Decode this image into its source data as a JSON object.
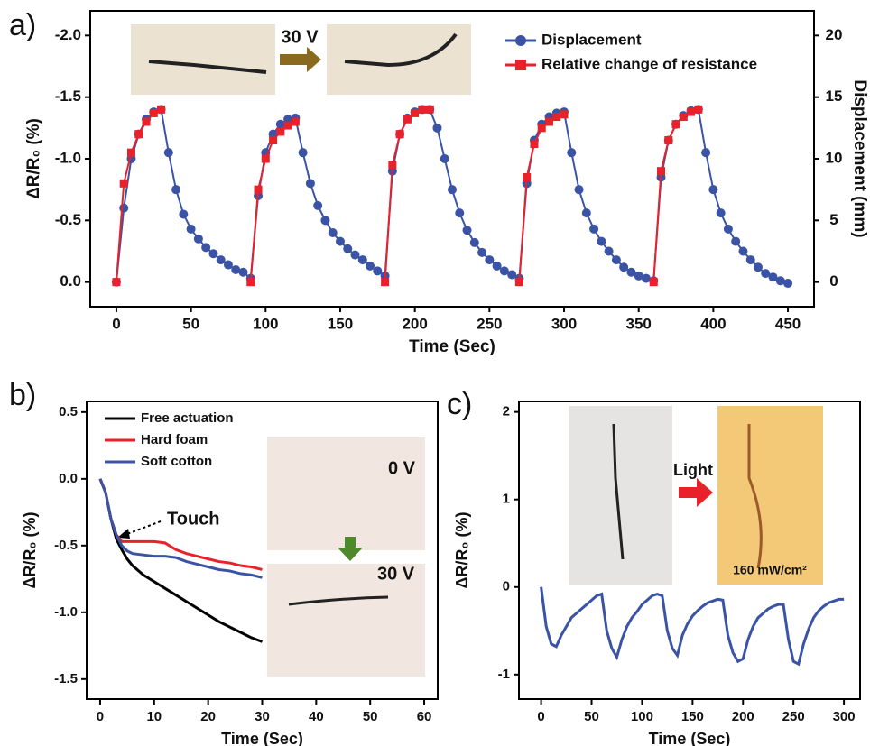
{
  "chart_data": [
    {
      "type": "line",
      "panel_label": "a)",
      "x_label": "Time (Sec)",
      "y_label": "ΔR/R₀ (%)",
      "y2_label": "Displacement (mm)",
      "annotations": [
        "30 V"
      ],
      "xlim": [
        -17.5,
        467.5
      ],
      "xticks": [
        0,
        50,
        100,
        150,
        200,
        250,
        300,
        350,
        400,
        450
      ],
      "ylim": [
        0.2,
        -2.2
      ],
      "yticks": [
        {
          "value": -2,
          "label": "-2.0"
        },
        -1.5,
        {
          "value": -1,
          "label": "-1.0"
        },
        -0.5,
        {
          "value": 0,
          "label": "0.0"
        }
      ],
      "y2lim": [
        -2,
        22
      ],
      "y2ticks": [
        0,
        5,
        10,
        15,
        20
      ],
      "x": [
        0,
        5,
        10,
        15,
        20,
        25,
        30,
        35,
        40,
        45,
        50,
        55,
        60,
        65,
        70,
        75,
        80,
        85,
        90,
        95,
        100,
        105,
        110,
        115,
        120,
        125,
        130,
        135,
        140,
        145,
        150,
        155,
        160,
        165,
        170,
        175,
        180,
        185,
        190,
        195,
        200,
        205,
        210,
        215,
        220,
        225,
        230,
        235,
        240,
        245,
        250,
        255,
        260,
        265,
        270,
        275,
        280,
        285,
        290,
        295,
        300,
        305,
        310,
        315,
        320,
        325,
        330,
        335,
        340,
        345,
        350,
        355,
        360,
        365,
        370,
        375,
        380,
        385,
        390,
        395,
        400,
        405,
        410,
        415,
        420,
        425,
        430,
        435,
        440,
        445,
        450
      ],
      "series": [
        {
          "name": "Displacement",
          "color": "#3a53a4",
          "marker": "circle",
          "axis": "y2",
          "values": [
            0,
            6,
            10,
            12,
            13.2,
            13.8,
            14,
            10.5,
            7.5,
            5.5,
            4.3,
            3.5,
            2.8,
            2.3,
            1.8,
            1.4,
            1.0,
            0.8,
            0.3,
            7,
            10.5,
            12,
            12.8,
            13.2,
            13.3,
            10.5,
            8,
            6.2,
            5,
            4,
            3.3,
            2.7,
            2.2,
            1.8,
            1.3,
            0.9,
            0.5,
            9,
            12,
            13.3,
            13.8,
            14,
            14,
            12.5,
            10,
            7.5,
            5.6,
            4.2,
            3.2,
            2.4,
            1.8,
            1.3,
            0.9,
            0.6,
            0.3,
            8,
            11.5,
            12.8,
            13.4,
            13.7,
            13.8,
            10.5,
            7.5,
            5.6,
            4.3,
            3.3,
            2.5,
            1.8,
            1.2,
            0.8,
            0.5,
            0.3,
            0.1,
            8.5,
            11.5,
            12.8,
            13.5,
            13.9,
            14,
            10.5,
            7.5,
            5.6,
            4.3,
            3.3,
            2.5,
            1.8,
            1.2,
            0.7,
            0.4,
            0.1,
            -0.1
          ]
        },
        {
          "name": "Relative change of resistance",
          "color": "#e8212b",
          "marker": "square",
          "values": [
            0,
            -0.8,
            -1.05,
            -1.2,
            -1.3,
            -1.37,
            -1.4,
            null,
            null,
            null,
            null,
            null,
            null,
            null,
            null,
            null,
            null,
            null,
            0,
            -0.75,
            -1.0,
            -1.15,
            -1.22,
            -1.27,
            -1.3,
            null,
            null,
            null,
            null,
            null,
            null,
            null,
            null,
            null,
            null,
            null,
            0,
            -0.95,
            -1.2,
            -1.32,
            -1.37,
            -1.4,
            -1.4,
            null,
            null,
            null,
            null,
            null,
            null,
            null,
            null,
            null,
            null,
            null,
            0,
            -0.85,
            -1.12,
            -1.25,
            -1.3,
            -1.34,
            -1.36,
            null,
            null,
            null,
            null,
            null,
            null,
            null,
            null,
            null,
            null,
            null,
            0,
            -0.9,
            -1.15,
            -1.28,
            -1.34,
            -1.38,
            -1.4,
            null,
            null,
            null,
            null,
            null,
            null,
            null,
            null,
            null,
            null,
            null,
            null
          ]
        }
      ]
    },
    {
      "type": "line",
      "panel_label": "b)",
      "x_label": "Time (Sec)",
      "y_label": "ΔR/R₀ (%)",
      "annotations": [
        "Touch",
        "0 V",
        "30 V"
      ],
      "xlim": [
        -2.5,
        62.5
      ],
      "xticks": [
        0,
        10,
        20,
        30,
        40,
        50,
        60
      ],
      "ylim": [
        -1.65,
        0.58
      ],
      "yticks": [
        0.5,
        {
          "value": 0,
          "label": "0.0"
        },
        -0.5,
        {
          "value": -1,
          "label": "-1.0"
        },
        -1.5
      ],
      "x": [
        0,
        1,
        2,
        3,
        4,
        5,
        6,
        8,
        10,
        12,
        14,
        16,
        18,
        20,
        22,
        24,
        26,
        28,
        30
      ],
      "series": [
        {
          "name": "Free actuation",
          "color": "#000000",
          "values": [
            0,
            -0.1,
            -0.3,
            -0.45,
            -0.53,
            -0.6,
            -0.65,
            -0.72,
            -0.77,
            -0.82,
            -0.87,
            -0.92,
            -0.97,
            -1.02,
            -1.07,
            -1.11,
            -1.15,
            -1.19,
            -1.22
          ]
        },
        {
          "name": "Hard foam",
          "color": "#e8212b",
          "values": [
            0,
            -0.1,
            -0.3,
            -0.42,
            -0.47,
            -0.47,
            -0.47,
            -0.47,
            -0.47,
            -0.48,
            -0.53,
            -0.56,
            -0.58,
            -0.6,
            -0.62,
            -0.63,
            -0.65,
            -0.66,
            -0.68
          ]
        },
        {
          "name": "Soft cotton",
          "color": "#3a53a4",
          "values": [
            0,
            -0.1,
            -0.3,
            -0.42,
            -0.5,
            -0.54,
            -0.56,
            -0.57,
            -0.58,
            -0.58,
            -0.59,
            -0.62,
            -0.64,
            -0.66,
            -0.68,
            -0.69,
            -0.71,
            -0.72,
            -0.74
          ]
        }
      ]
    },
    {
      "type": "line",
      "panel_label": "c)",
      "x_label": "Time (Sec)",
      "y_label": "ΔR/R₀ (%)",
      "annotations": [
        "Light",
        "160 mW/cm²"
      ],
      "xlim": [
        -22,
        316
      ],
      "xticks": [
        0,
        50,
        100,
        150,
        200,
        250,
        300
      ],
      "ylim": [
        -1.28,
        2.12
      ],
      "yticks": [
        -1,
        0,
        1,
        2
      ],
      "x": [
        0,
        5,
        10,
        15,
        20,
        25,
        30,
        35,
        40,
        45,
        50,
        55,
        60,
        65,
        70,
        75,
        80,
        85,
        90,
        95,
        100,
        105,
        110,
        115,
        120,
        125,
        130,
        135,
        140,
        145,
        150,
        155,
        160,
        165,
        170,
        175,
        180,
        185,
        190,
        195,
        200,
        205,
        210,
        215,
        220,
        225,
        230,
        235,
        240,
        245,
        250,
        255,
        260,
        265,
        270,
        275,
        280,
        285,
        290,
        295,
        300
      ],
      "series": [
        {
          "color": "#3a53a4",
          "values": [
            0,
            -0.45,
            -0.65,
            -0.68,
            -0.55,
            -0.45,
            -0.35,
            -0.3,
            -0.25,
            -0.2,
            -0.15,
            -0.1,
            -0.08,
            -0.5,
            -0.7,
            -0.8,
            -0.6,
            -0.45,
            -0.35,
            -0.28,
            -0.2,
            -0.15,
            -0.1,
            -0.08,
            -0.1,
            -0.5,
            -0.7,
            -0.78,
            -0.55,
            -0.42,
            -0.33,
            -0.27,
            -0.22,
            -0.18,
            -0.16,
            -0.14,
            -0.15,
            -0.55,
            -0.75,
            -0.85,
            -0.82,
            -0.6,
            -0.45,
            -0.35,
            -0.3,
            -0.25,
            -0.22,
            -0.2,
            -0.2,
            -0.6,
            -0.85,
            -0.88,
            -0.65,
            -0.48,
            -0.35,
            -0.27,
            -0.22,
            -0.18,
            -0.16,
            -0.14,
            -0.14
          ]
        }
      ]
    }
  ]
}
